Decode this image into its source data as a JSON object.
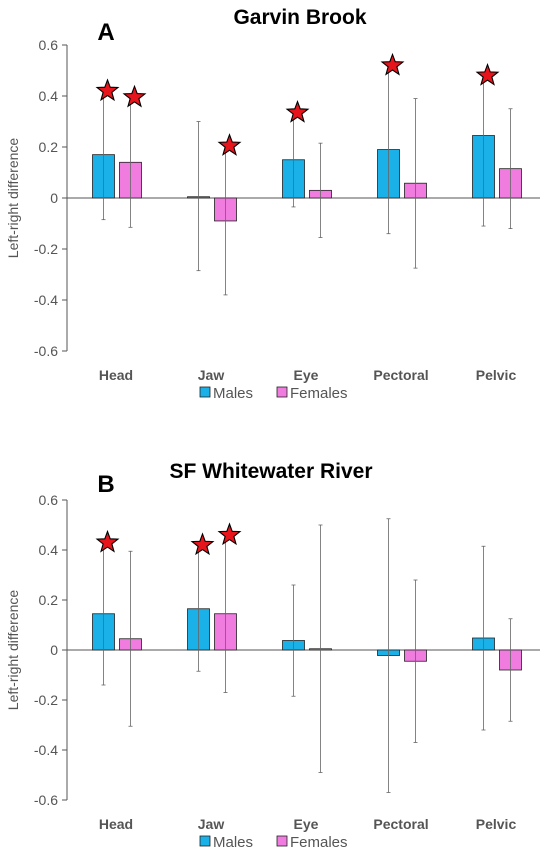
{
  "figure": {
    "colors": {
      "males": "#1ab0e8",
      "females": "#f07ce0",
      "star_fill": "#e8141c",
      "star_stroke": "#000000",
      "axis": "#555555"
    }
  },
  "chart_data": [
    {
      "type": "bar",
      "panel": "A",
      "title": "Garvin Brook",
      "ylabel": "Left-right difference",
      "xlabel": "",
      "ylim": [
        -0.6,
        0.6
      ],
      "yticks": [
        -0.6,
        -0.4,
        -0.2,
        0,
        0.2,
        0.4,
        0.6
      ],
      "ytick_labels": [
        "-0.6",
        "-0.4",
        "-0.2",
        "0",
        "0.2",
        "0.4",
        "0.6"
      ],
      "categories": [
        "Head",
        "Jaw",
        "Eye",
        "Pectoral",
        "Pelvic"
      ],
      "legend": {
        "placement": "bottom",
        "entries": [
          "Males",
          "Females"
        ]
      },
      "series": [
        {
          "name": "Males",
          "values": [
            0.17,
            0.005,
            0.15,
            0.19,
            0.245
          ],
          "err_low": [
            -0.085,
            -0.285,
            -0.035,
            -0.14,
            -0.11
          ],
          "err_high": [
            0.42,
            0.3,
            0.335,
            0.52,
            0.48
          ],
          "significant": [
            true,
            false,
            true,
            true,
            true
          ]
        },
        {
          "name": "Females",
          "values": [
            0.14,
            -0.09,
            0.03,
            0.058,
            0.115
          ],
          "err_low": [
            -0.115,
            -0.38,
            -0.155,
            -0.275,
            -0.12
          ],
          "err_high": [
            0.395,
            0.205,
            0.215,
            0.39,
            0.35
          ],
          "significant": [
            true,
            true,
            false,
            false,
            false
          ]
        }
      ]
    },
    {
      "type": "bar",
      "panel": "B",
      "title": "SF Whitewater River",
      "ylabel": "Left-right difference",
      "xlabel": "",
      "ylim": [
        -0.6,
        0.6
      ],
      "yticks": [
        -0.6,
        -0.4,
        -0.2,
        0,
        0.2,
        0.4,
        0.6
      ],
      "ytick_labels": [
        "-0.6",
        "-0.4",
        "-0.2",
        "0",
        "0.2",
        "0.4",
        "0.6"
      ],
      "categories": [
        "Head",
        "Jaw",
        "Eye",
        "Pectoral",
        "Pelvic"
      ],
      "legend": {
        "placement": "bottom",
        "entries": [
          "Males",
          "Females"
        ]
      },
      "series": [
        {
          "name": "Males",
          "values": [
            0.145,
            0.165,
            0.038,
            -0.022,
            0.048
          ],
          "err_low": [
            -0.14,
            -0.085,
            -0.185,
            -0.57,
            -0.32
          ],
          "err_high": [
            0.43,
            0.42,
            0.26,
            0.525,
            0.415
          ],
          "significant": [
            true,
            true,
            false,
            false,
            false
          ]
        },
        {
          "name": "Females",
          "values": [
            0.045,
            0.145,
            0.005,
            -0.045,
            -0.08
          ],
          "err_low": [
            -0.305,
            -0.17,
            -0.49,
            -0.37,
            -0.285
          ],
          "err_high": [
            0.395,
            0.46,
            0.5,
            0.28,
            0.125
          ],
          "significant": [
            false,
            true,
            false,
            false,
            false
          ]
        }
      ]
    }
  ]
}
